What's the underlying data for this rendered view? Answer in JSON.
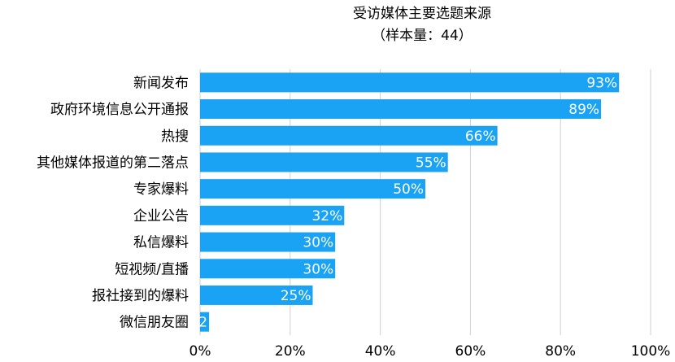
{
  "chart_data": {
    "type": "bar",
    "orientation": "horizontal",
    "title": "受访媒体主要选题来源",
    "subtitle": "（样本量：44）",
    "categories": [
      "新闻发布",
      "政府环境信息公开通报",
      "热搜",
      "其他媒体报道的第二落点",
      "专家爆料",
      "企业公告",
      "私信爆料",
      "短视频/直播",
      "报社接到的爆料",
      "微信朋友圈"
    ],
    "values": [
      93,
      89,
      66,
      55,
      50,
      32,
      30,
      30,
      25,
      2
    ],
    "data_labels": [
      "93%",
      "89%",
      "66%",
      "55%",
      "50%",
      "32%",
      "30%",
      "30%",
      "25%",
      "2"
    ],
    "xlim": [
      0,
      100
    ],
    "xticks": [
      0,
      20,
      40,
      60,
      80,
      100
    ],
    "xtick_labels": [
      "0%",
      "20%",
      "40%",
      "60%",
      "80%",
      "100%"
    ],
    "grid": "vertical",
    "bar_color": "#1aa3f5",
    "grid_color": "#cfcfcf"
  }
}
